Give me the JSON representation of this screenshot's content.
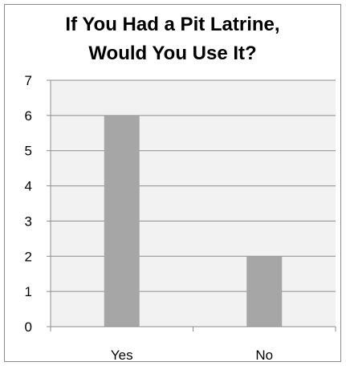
{
  "chart_data": {
    "type": "bar",
    "title": "If You Had a Pit Latrine, Would You Use It?",
    "title_lines": [
      "If You Had a Pit Latrine,",
      "Would You Use It?"
    ],
    "categories": [
      "Yes",
      "No"
    ],
    "values": [
      6,
      2
    ],
    "xlabel": "",
    "ylabel": "",
    "ylim": [
      0,
      7
    ],
    "yticks": [
      "0",
      "1",
      "2",
      "3",
      "4",
      "5",
      "6",
      "7"
    ],
    "grid": true,
    "legend": "none",
    "colors": {
      "bar": "#a6a6a6",
      "plot_background": "#f2f2f2",
      "gridline": "#8c8c8c",
      "axis": "#8c8c8c"
    }
  }
}
